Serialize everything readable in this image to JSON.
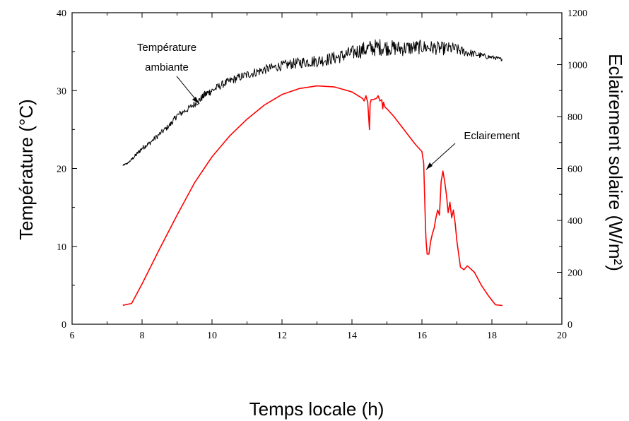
{
  "chart_data": {
    "type": "line",
    "xlabel": "Temps locale (h)",
    "ylabel_left": "Température (°C)",
    "ylabel_right": "Eclairement solaire (W/m²)",
    "xlim": [
      6,
      20
    ],
    "ylim_left": [
      0,
      40
    ],
    "ylim_right": [
      0,
      1200
    ],
    "x_ticks": [
      "6",
      "8",
      "10",
      "12",
      "14",
      "16",
      "18",
      "20"
    ],
    "y_left_ticks": [
      "0",
      "10",
      "20",
      "30",
      "40"
    ],
    "y_right_ticks": [
      "0",
      "200",
      "400",
      "600",
      "800",
      "1000",
      "1200"
    ],
    "grid": false,
    "series": [
      {
        "name": "Température ambiante",
        "axis": "left",
        "color": "#000000",
        "x": [
          7.45,
          7.6,
          7.8,
          8.0,
          8.2,
          8.5,
          8.8,
          9.0,
          9.3,
          9.6,
          9.8,
          10.0,
          10.3,
          10.6,
          10.9,
          11.2,
          11.5,
          11.8,
          12.1,
          12.4,
          12.7,
          13.0,
          13.3,
          13.6,
          13.9,
          14.2,
          14.5,
          14.8,
          15.1,
          15.4,
          15.7,
          16.0,
          16.3,
          16.6,
          16.9,
          17.2,
          17.5,
          17.8,
          18.1,
          18.3
        ],
        "y": [
          20.4,
          20.7,
          21.6,
          22.6,
          23.2,
          24.4,
          25.6,
          26.8,
          27.6,
          28.6,
          29.5,
          30.0,
          30.8,
          31.4,
          31.9,
          32.3,
          32.7,
          33.0,
          33.3,
          33.5,
          33.7,
          33.8,
          34.0,
          34.3,
          34.7,
          35.1,
          35.4,
          35.6,
          35.5,
          35.4,
          35.5,
          35.6,
          35.5,
          35.4,
          35.4,
          35.0,
          34.7,
          34.4,
          34.2,
          34.0
        ],
        "noise": [
          0.1,
          0.1,
          0.25,
          0.3,
          0.3,
          0.35,
          0.35,
          0.4,
          0.4,
          0.45,
          0.5,
          0.5,
          0.5,
          0.55,
          0.55,
          0.6,
          0.6,
          0.6,
          0.65,
          0.7,
          0.75,
          0.8,
          0.8,
          0.85,
          0.9,
          1.0,
          1.1,
          1.1,
          1.0,
          1.0,
          0.95,
          0.9,
          0.9,
          0.85,
          0.8,
          0.6,
          0.45,
          0.35,
          0.25,
          0.2
        ]
      },
      {
        "name": "Eclairement",
        "axis": "right",
        "color": "#ff0000",
        "x": [
          7.45,
          7.7,
          8.0,
          8.5,
          9.0,
          9.5,
          10.0,
          10.5,
          11.0,
          11.5,
          12.0,
          12.5,
          13.0,
          13.5,
          14.0,
          14.3,
          14.35,
          14.4,
          14.45,
          14.5,
          14.52,
          14.55,
          14.6,
          14.7,
          14.75,
          14.8,
          14.85,
          14.88,
          14.9,
          14.95,
          15.0,
          15.2,
          15.4,
          15.6,
          15.8,
          16.0,
          16.05,
          16.1,
          16.12,
          16.15,
          16.2,
          16.25,
          16.3,
          16.35,
          16.4,
          16.45,
          16.5,
          16.55,
          16.6,
          16.65,
          16.7,
          16.75,
          16.8,
          16.85,
          16.9,
          16.95,
          17.0,
          17.05,
          17.1,
          17.2,
          17.3,
          17.5,
          17.7,
          17.9,
          18.1,
          18.3
        ],
        "y": [
          73,
          80,
          155,
          290,
          420,
          545,
          645,
          725,
          790,
          845,
          885,
          908,
          918,
          914,
          895,
          870,
          860,
          880,
          855,
          750,
          850,
          865,
          865,
          870,
          880,
          860,
          865,
          830,
          855,
          835,
          830,
          800,
          765,
          730,
          695,
          665,
          620,
          380,
          320,
          270,
          270,
          320,
          350,
          370,
          410,
          440,
          420,
          550,
          590,
          550,
          500,
          430,
          470,
          410,
          440,
          390,
          320,
          270,
          220,
          210,
          225,
          200,
          150,
          110,
          75,
          72
        ]
      }
    ],
    "annotations": [
      "Température",
      "ambiante",
      "Eclairement"
    ]
  }
}
